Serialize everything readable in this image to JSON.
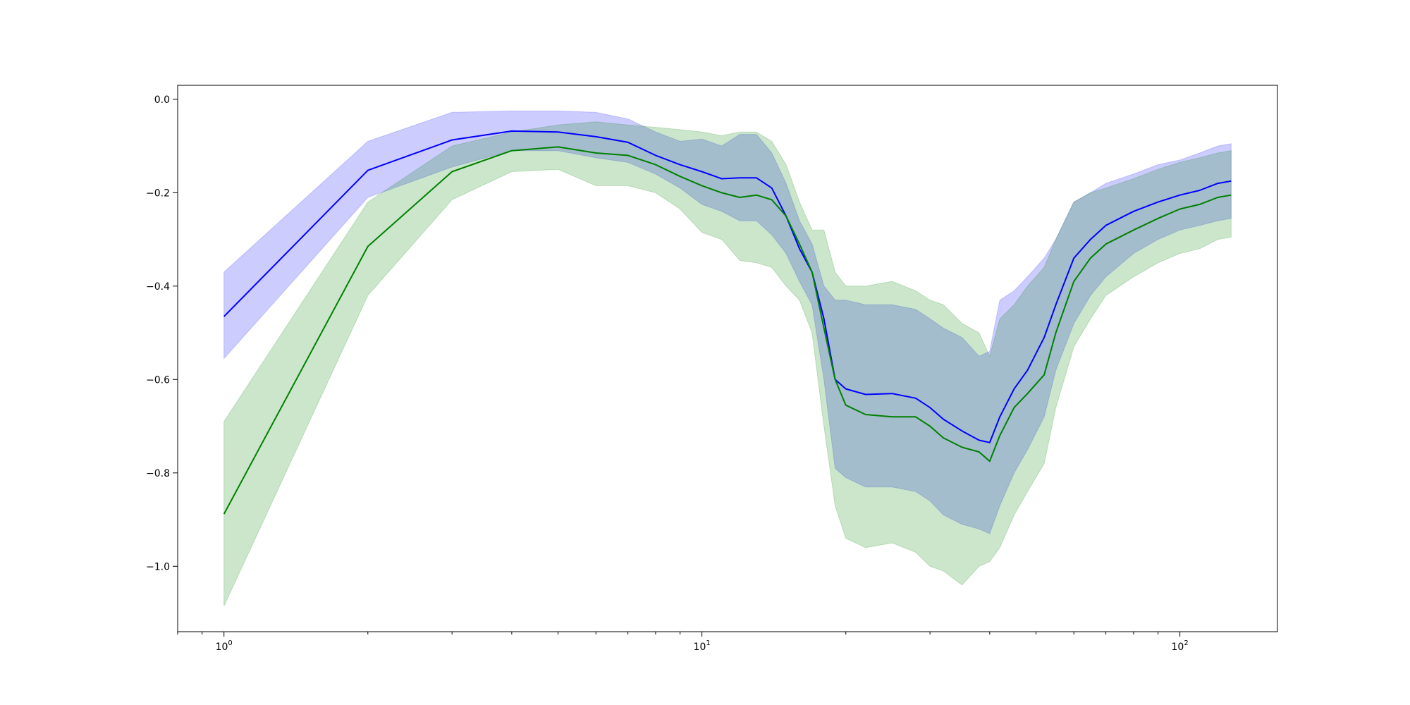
{
  "chart_data": {
    "type": "line",
    "title": "",
    "xlabel": "",
    "ylabel": "",
    "x_scale": "log",
    "xlim": [
      0.8,
      160
    ],
    "ylim": [
      -1.14,
      0.03
    ],
    "grid": false,
    "x_ticks": [
      {
        "value": 1,
        "base": "10",
        "exp": "0"
      },
      {
        "value": 10,
        "base": "10",
        "exp": "1"
      },
      {
        "value": 100,
        "base": "10",
        "exp": "2"
      }
    ],
    "y_ticks": [
      {
        "value": 0.0,
        "label": "0.0"
      },
      {
        "value": -0.2,
        "label": "−0.2"
      },
      {
        "value": -0.4,
        "label": "−0.4"
      },
      {
        "value": -0.6,
        "label": "−0.6"
      },
      {
        "value": -0.8,
        "label": "−0.8"
      },
      {
        "value": -1.0,
        "label": "−1.0"
      }
    ],
    "series": [
      {
        "color": "#0000ff",
        "band_color": "#8080ff",
        "band_opacity": 0.4,
        "x": [
          1,
          2,
          3,
          4,
          5,
          6,
          7,
          8,
          9,
          10,
          11,
          12,
          13,
          14,
          15,
          16,
          17,
          18,
          19,
          20,
          22,
          25,
          28,
          30,
          32,
          35,
          38,
          40,
          42,
          45,
          48,
          52,
          55,
          60,
          65,
          70,
          80,
          90,
          100,
          110,
          120,
          128
        ],
        "y": [
          -0.465,
          -0.152,
          -0.087,
          -0.068,
          -0.07,
          -0.08,
          -0.092,
          -0.12,
          -0.14,
          -0.155,
          -0.17,
          -0.168,
          -0.168,
          -0.19,
          -0.25,
          -0.32,
          -0.37,
          -0.47,
          -0.6,
          -0.62,
          -0.632,
          -0.63,
          -0.64,
          -0.66,
          -0.685,
          -0.71,
          -0.73,
          -0.735,
          -0.68,
          -0.62,
          -0.58,
          -0.51,
          -0.44,
          -0.34,
          -0.3,
          -0.27,
          -0.24,
          -0.22,
          -0.205,
          -0.195,
          -0.18,
          -0.175
        ],
        "upper": [
          -0.37,
          -0.09,
          -0.028,
          -0.025,
          -0.025,
          -0.028,
          -0.042,
          -0.07,
          -0.09,
          -0.085,
          -0.1,
          -0.075,
          -0.075,
          -0.115,
          -0.18,
          -0.26,
          -0.31,
          -0.4,
          -0.43,
          -0.43,
          -0.44,
          -0.44,
          -0.45,
          -0.47,
          -0.49,
          -0.51,
          -0.55,
          -0.54,
          -0.43,
          -0.41,
          -0.38,
          -0.34,
          -0.3,
          -0.22,
          -0.2,
          -0.18,
          -0.16,
          -0.14,
          -0.13,
          -0.115,
          -0.1,
          -0.095
        ],
        "lower": [
          -0.555,
          -0.21,
          -0.145,
          -0.11,
          -0.11,
          -0.125,
          -0.135,
          -0.16,
          -0.19,
          -0.225,
          -0.24,
          -0.26,
          -0.26,
          -0.29,
          -0.33,
          -0.39,
          -0.44,
          -0.6,
          -0.79,
          -0.81,
          -0.83,
          -0.83,
          -0.84,
          -0.86,
          -0.89,
          -0.91,
          -0.92,
          -0.93,
          -0.87,
          -0.8,
          -0.75,
          -0.68,
          -0.58,
          -0.48,
          -0.42,
          -0.38,
          -0.33,
          -0.3,
          -0.28,
          -0.27,
          -0.26,
          -0.255
        ]
      },
      {
        "color": "#008000",
        "band_color": "#008000",
        "band_opacity": 0.2,
        "x": [
          1,
          2,
          3,
          4,
          5,
          6,
          7,
          8,
          9,
          10,
          11,
          12,
          13,
          14,
          15,
          16,
          17,
          18,
          19,
          20,
          22,
          25,
          28,
          30,
          32,
          35,
          38,
          40,
          42,
          45,
          48,
          52,
          55,
          60,
          65,
          70,
          80,
          90,
          100,
          110,
          120,
          128
        ],
        "y": [
          -0.888,
          -0.315,
          -0.155,
          -0.11,
          -0.102,
          -0.115,
          -0.12,
          -0.14,
          -0.165,
          -0.185,
          -0.2,
          -0.21,
          -0.205,
          -0.215,
          -0.25,
          -0.31,
          -0.37,
          -0.49,
          -0.6,
          -0.655,
          -0.675,
          -0.68,
          -0.68,
          -0.7,
          -0.725,
          -0.745,
          -0.755,
          -0.775,
          -0.72,
          -0.66,
          -0.63,
          -0.59,
          -0.5,
          -0.39,
          -0.34,
          -0.31,
          -0.28,
          -0.255,
          -0.235,
          -0.225,
          -0.21,
          -0.205
        ],
        "upper": [
          -0.69,
          -0.22,
          -0.1,
          -0.07,
          -0.055,
          -0.048,
          -0.055,
          -0.06,
          -0.065,
          -0.07,
          -0.078,
          -0.07,
          -0.07,
          -0.09,
          -0.14,
          -0.22,
          -0.28,
          -0.28,
          -0.37,
          -0.4,
          -0.4,
          -0.39,
          -0.41,
          -0.43,
          -0.44,
          -0.48,
          -0.5,
          -0.55,
          -0.47,
          -0.44,
          -0.4,
          -0.36,
          -0.3,
          -0.22,
          -0.2,
          -0.19,
          -0.17,
          -0.15,
          -0.135,
          -0.125,
          -0.115,
          -0.11
        ],
        "lower": [
          -1.085,
          -0.42,
          -0.215,
          -0.155,
          -0.15,
          -0.185,
          -0.185,
          -0.2,
          -0.235,
          -0.285,
          -0.3,
          -0.345,
          -0.35,
          -0.36,
          -0.4,
          -0.43,
          -0.5,
          -0.7,
          -0.87,
          -0.94,
          -0.96,
          -0.95,
          -0.97,
          -1.0,
          -1.01,
          -1.04,
          -1.0,
          -0.99,
          -0.96,
          -0.89,
          -0.84,
          -0.78,
          -0.66,
          -0.53,
          -0.47,
          -0.42,
          -0.38,
          -0.35,
          -0.33,
          -0.32,
          -0.3,
          -0.295
        ]
      }
    ]
  }
}
